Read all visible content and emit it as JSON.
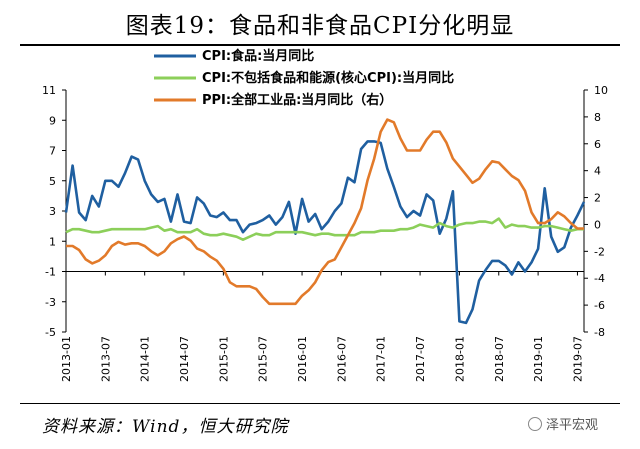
{
  "title": "图表19：食品和非食品CPI分化明显",
  "source": "资料来源：Wind，恒大研究院",
  "badge": "泽平宏观",
  "chart_data": {
    "type": "line",
    "x_labels": [
      "2013-01",
      "2013-07",
      "2014-01",
      "2014-07",
      "2015-01",
      "2015-07",
      "2016-01",
      "2016-07",
      "2017-01",
      "2017-07",
      "2018-01",
      "2018-07",
      "2019-01",
      "2019-07"
    ],
    "n_points": 80,
    "y_left": {
      "ticks": [
        -5,
        -3,
        -1,
        1,
        3,
        5,
        7,
        9,
        11
      ],
      "ylim": [
        -5,
        11
      ]
    },
    "y_right": {
      "ticks": [
        -8,
        -6,
        -4,
        -2,
        0,
        2,
        4,
        6,
        8,
        10
      ],
      "ylim": [
        -8,
        10
      ]
    },
    "legend": [
      "CPI:食品:当月同比",
      "CPI:不包括食品和能源(核心CPI):当月同比",
      "PPI:全部工业品:当月同比（右）"
    ],
    "series": [
      {
        "name": "CPI:食品:当月同比",
        "axis": "left",
        "color": "#1f5fa0",
        "values": [
          2.9,
          6.0,
          2.9,
          2.4,
          4.0,
          3.3,
          5.0,
          5.0,
          4.6,
          5.5,
          6.6,
          6.4,
          5.0,
          4.1,
          3.6,
          3.8,
          2.3,
          4.1,
          2.3,
          2.2,
          3.9,
          3.5,
          2.7,
          2.6,
          2.9,
          2.4,
          2.4,
          1.6,
          2.1,
          2.2,
          2.4,
          2.7,
          2.1,
          2.6,
          3.6,
          1.5,
          3.8,
          2.3,
          2.8,
          1.8,
          2.3,
          3.0,
          3.5,
          5.2,
          4.9,
          7.1,
          7.6,
          7.6,
          7.5,
          5.8,
          4.6,
          3.3,
          2.6,
          3.0,
          2.7,
          4.1,
          3.7,
          1.5,
          2.5,
          4.3,
          -4.3,
          -4.4,
          -3.5,
          -1.6,
          -0.9,
          -0.3,
          -0.3,
          -0.6,
          -1.2,
          -0.4,
          -1.0,
          -0.4,
          0.5,
          4.5,
          1.3,
          0.3,
          0.6,
          1.9,
          2.7,
          3.6
        ]
      },
      {
        "name": "CPI:不包括食品和能源(核心CPI):当月同比",
        "axis": "left",
        "color": "#8ccf5a",
        "values": [
          1.6,
          1.8,
          1.8,
          1.7,
          1.6,
          1.6,
          1.7,
          1.8,
          1.8,
          1.8,
          1.8,
          1.8,
          1.8,
          1.9,
          2.0,
          1.7,
          1.8,
          1.6,
          1.6,
          1.6,
          1.8,
          1.5,
          1.4,
          1.4,
          1.5,
          1.4,
          1.3,
          1.1,
          1.3,
          1.5,
          1.4,
          1.4,
          1.6,
          1.6,
          1.6,
          1.6,
          1.6,
          1.5,
          1.4,
          1.5,
          1.5,
          1.4,
          1.4,
          1.4,
          1.4,
          1.6,
          1.6,
          1.6,
          1.7,
          1.7,
          1.7,
          1.8,
          1.8,
          1.9,
          2.1,
          2.0,
          1.9,
          2.2,
          2.0,
          1.9,
          2.1,
          2.2,
          2.2,
          2.3,
          2.3,
          2.2,
          2.5,
          1.9,
          2.1,
          2.0,
          2.0,
          1.9,
          1.9,
          2.0,
          2.0,
          1.9,
          1.8,
          1.7,
          1.8,
          1.8
        ]
      },
      {
        "name": "PPI:全部工业品:当月同比（右）",
        "axis": "right",
        "color": "#e27a2a",
        "values": [
          -1.6,
          -1.6,
          -1.9,
          -2.6,
          -2.9,
          -2.7,
          -2.3,
          -1.6,
          -1.3,
          -1.5,
          -1.4,
          -1.4,
          -1.6,
          -2.0,
          -2.3,
          -2.0,
          -1.4,
          -1.1,
          -0.9,
          -1.2,
          -1.8,
          -2.0,
          -2.4,
          -2.7,
          -3.3,
          -4.3,
          -4.6,
          -4.6,
          -4.6,
          -4.8,
          -5.4,
          -5.9,
          -5.9,
          -5.9,
          -5.9,
          -5.9,
          -5.3,
          -4.9,
          -4.3,
          -3.4,
          -2.8,
          -2.6,
          -1.7,
          -0.8,
          0.1,
          1.2,
          3.3,
          4.9,
          6.9,
          7.8,
          7.6,
          6.4,
          5.5,
          5.5,
          5.5,
          6.3,
          6.9,
          6.9,
          6.1,
          4.9,
          4.3,
          3.7,
          3.1,
          3.4,
          4.1,
          4.7,
          4.6,
          4.1,
          3.6,
          3.3,
          2.5,
          0.9,
          0.1,
          0.1,
          0.4,
          0.9,
          0.6,
          0.1,
          -0.3,
          -0.3
        ]
      }
    ]
  }
}
